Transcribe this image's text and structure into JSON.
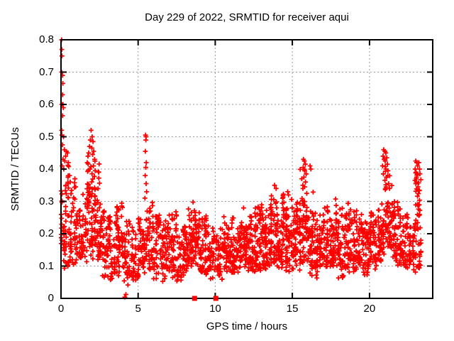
{
  "chart_data": {
    "type": "scatter",
    "title": "Day 229 of 2022, SRMTID for receiver aqui",
    "xlabel": "GPS time / hours",
    "ylabel": "SRMTID / TECUs",
    "xlim": [
      0,
      24.1
    ],
    "ylim": [
      0,
      0.8
    ],
    "xticks": [
      0,
      5,
      10,
      15,
      20
    ],
    "xtick_labels": [
      "0",
      "5",
      "10",
      "15",
      "20"
    ],
    "yticks": [
      0,
      0.1,
      0.2,
      0.3,
      0.4,
      0.5,
      0.6,
      0.7,
      0.8
    ],
    "ytick_labels": [
      "0",
      "0.1",
      "0.2",
      "0.3",
      "0.4",
      "0.5",
      "0.6",
      "0.7",
      "0.8"
    ],
    "grid": true,
    "legend": "none",
    "marker": "plus",
    "marker_color": "#ff0000",
    "grid_color": "#9a9a9a",
    "frame_color": "#000000",
    "background": "#ffffff",
    "seed": 229,
    "band_envelope_fields": [
      "x_start_hours",
      "width_hours",
      "value_low",
      "value_high",
      "point_count"
    ],
    "band_envelope": [
      [
        0.0,
        0.5,
        0.09,
        0.45,
        60
      ],
      [
        0.5,
        0.5,
        0.1,
        0.36,
        48
      ],
      [
        1.0,
        0.5,
        0.1,
        0.33,
        42
      ],
      [
        1.5,
        0.5,
        0.11,
        0.44,
        55
      ],
      [
        2.0,
        0.5,
        0.12,
        0.47,
        60
      ],
      [
        2.5,
        0.5,
        0.06,
        0.3,
        48
      ],
      [
        3.0,
        0.5,
        0.05,
        0.26,
        45
      ],
      [
        3.5,
        0.5,
        0.07,
        0.3,
        50
      ],
      [
        4.0,
        0.5,
        0.04,
        0.27,
        45
      ],
      [
        4.5,
        0.5,
        0.04,
        0.22,
        40
      ],
      [
        5.0,
        0.5,
        0.06,
        0.26,
        45
      ],
      [
        5.5,
        0.5,
        0.08,
        0.3,
        46
      ],
      [
        6.0,
        0.5,
        0.06,
        0.26,
        45
      ],
      [
        6.5,
        0.5,
        0.05,
        0.24,
        42
      ],
      [
        7.0,
        0.5,
        0.06,
        0.27,
        46
      ],
      [
        7.5,
        0.5,
        0.05,
        0.22,
        42
      ],
      [
        8.0,
        0.5,
        0.08,
        0.28,
        50
      ],
      [
        8.5,
        0.5,
        0.1,
        0.3,
        50
      ],
      [
        9.0,
        0.5,
        0.07,
        0.26,
        46
      ],
      [
        9.5,
        0.5,
        0.06,
        0.23,
        42
      ],
      [
        10.0,
        0.5,
        0.05,
        0.22,
        42
      ],
      [
        10.5,
        0.5,
        0.08,
        0.26,
        50
      ],
      [
        11.0,
        0.5,
        0.07,
        0.25,
        50
      ],
      [
        11.5,
        0.5,
        0.09,
        0.28,
        52
      ],
      [
        12.0,
        0.5,
        0.07,
        0.27,
        50
      ],
      [
        12.5,
        0.5,
        0.08,
        0.3,
        55
      ],
      [
        13.0,
        0.5,
        0.08,
        0.29,
        55
      ],
      [
        13.5,
        0.5,
        0.1,
        0.34,
        60
      ],
      [
        14.0,
        0.5,
        0.09,
        0.33,
        60
      ],
      [
        14.5,
        0.5,
        0.08,
        0.31,
        55
      ],
      [
        15.0,
        0.5,
        0.08,
        0.31,
        55
      ],
      [
        15.5,
        0.5,
        0.1,
        0.4,
        60
      ],
      [
        16.0,
        0.5,
        0.07,
        0.33,
        55
      ],
      [
        16.5,
        0.5,
        0.06,
        0.26,
        46
      ],
      [
        17.0,
        0.5,
        0.07,
        0.29,
        50
      ],
      [
        17.5,
        0.5,
        0.09,
        0.31,
        50
      ],
      [
        18.0,
        0.5,
        0.06,
        0.28,
        50
      ],
      [
        18.5,
        0.5,
        0.08,
        0.3,
        50
      ],
      [
        19.0,
        0.5,
        0.09,
        0.28,
        50
      ],
      [
        19.5,
        0.5,
        0.07,
        0.26,
        46
      ],
      [
        20.0,
        0.5,
        0.09,
        0.27,
        50
      ],
      [
        20.5,
        0.5,
        0.11,
        0.3,
        50
      ],
      [
        21.0,
        0.5,
        0.14,
        0.42,
        55
      ],
      [
        21.5,
        0.5,
        0.1,
        0.32,
        46
      ],
      [
        22.0,
        0.5,
        0.09,
        0.28,
        44
      ],
      [
        22.5,
        0.5,
        0.08,
        0.25,
        40
      ],
      [
        23.0,
        0.35,
        0.08,
        0.4,
        45
      ]
    ],
    "outlier_points": [
      [
        0.04,
        0.8
      ],
      [
        0.05,
        0.77
      ],
      [
        0.06,
        0.75
      ],
      [
        0.04,
        0.7
      ],
      [
        0.1,
        0.69
      ],
      [
        0.12,
        0.665
      ],
      [
        0.1,
        0.63
      ],
      [
        0.05,
        0.6
      ],
      [
        0.13,
        0.6
      ],
      [
        0.15,
        0.59
      ],
      [
        0.1,
        0.565
      ],
      [
        0.04,
        0.52
      ],
      [
        0.06,
        0.505
      ],
      [
        0.16,
        0.5
      ],
      [
        0.09,
        0.475
      ],
      [
        0.22,
        0.46
      ],
      [
        0.35,
        0.455
      ],
      [
        0.42,
        0.45
      ],
      [
        0.3,
        0.44
      ],
      [
        0.13,
        0.43
      ],
      [
        0.25,
        0.425
      ],
      [
        0.48,
        0.42
      ],
      [
        0.07,
        0.41
      ],
      [
        0.18,
        0.4
      ],
      [
        0.55,
        0.38
      ],
      [
        0.6,
        0.36
      ],
      [
        0.9,
        0.37
      ],
      [
        0.95,
        0.345
      ],
      [
        1.95,
        0.52
      ],
      [
        2.02,
        0.5
      ],
      [
        1.9,
        0.49
      ],
      [
        2.08,
        0.485
      ],
      [
        1.85,
        0.47
      ],
      [
        2.0,
        0.465
      ],
      [
        2.12,
        0.455
      ],
      [
        1.8,
        0.45
      ],
      [
        2.05,
        0.445
      ],
      [
        1.75,
        0.44
      ],
      [
        2.18,
        0.43
      ],
      [
        1.7,
        0.42
      ],
      [
        2.1,
        0.41
      ],
      [
        1.88,
        0.4
      ],
      [
        2.22,
        0.395
      ],
      [
        5.48,
        0.505
      ],
      [
        5.52,
        0.5
      ],
      [
        5.5,
        0.49
      ],
      [
        5.47,
        0.455
      ],
      [
        5.53,
        0.42
      ],
      [
        5.5,
        0.405
      ],
      [
        5.46,
        0.38
      ],
      [
        5.52,
        0.355
      ],
      [
        5.55,
        0.33
      ],
      [
        5.44,
        0.31
      ],
      [
        13.85,
        0.35
      ],
      [
        13.95,
        0.34
      ],
      [
        14.7,
        0.33
      ],
      [
        14.75,
        0.32
      ],
      [
        15.72,
        0.43
      ],
      [
        15.78,
        0.425
      ],
      [
        15.84,
        0.415
      ],
      [
        15.7,
        0.405
      ],
      [
        15.8,
        0.395
      ],
      [
        15.9,
        0.385
      ],
      [
        15.75,
        0.375
      ],
      [
        15.85,
        0.36
      ],
      [
        15.68,
        0.35
      ],
      [
        15.8,
        0.345
      ],
      [
        16.15,
        0.41
      ],
      [
        16.2,
        0.4
      ],
      [
        20.92,
        0.46
      ],
      [
        21.0,
        0.455
      ],
      [
        21.06,
        0.45
      ],
      [
        20.88,
        0.44
      ],
      [
        21.12,
        0.435
      ],
      [
        20.95,
        0.43
      ],
      [
        21.02,
        0.425
      ],
      [
        21.16,
        0.415
      ],
      [
        20.85,
        0.41
      ],
      [
        21.06,
        0.4
      ],
      [
        21.2,
        0.395
      ],
      [
        20.9,
        0.385
      ],
      [
        21.1,
        0.375
      ],
      [
        21.0,
        0.365
      ],
      [
        21.24,
        0.355
      ],
      [
        21.3,
        0.34
      ],
      [
        23.0,
        0.425
      ],
      [
        23.06,
        0.42
      ],
      [
        23.12,
        0.41
      ],
      [
        22.96,
        0.4
      ],
      [
        23.02,
        0.39
      ],
      [
        23.1,
        0.385
      ],
      [
        23.05,
        0.375
      ],
      [
        22.95,
        0.365
      ],
      [
        23.0,
        0.355
      ],
      [
        23.15,
        0.345
      ],
      [
        23.2,
        0.42
      ],
      [
        23.25,
        0.4
      ]
    ],
    "near_zero_points": [
      [
        4.14,
        0.004
      ],
      [
        4.21,
        0.012
      ]
    ],
    "zero_square_markers_x": [
      8.66,
      10.04
    ]
  }
}
